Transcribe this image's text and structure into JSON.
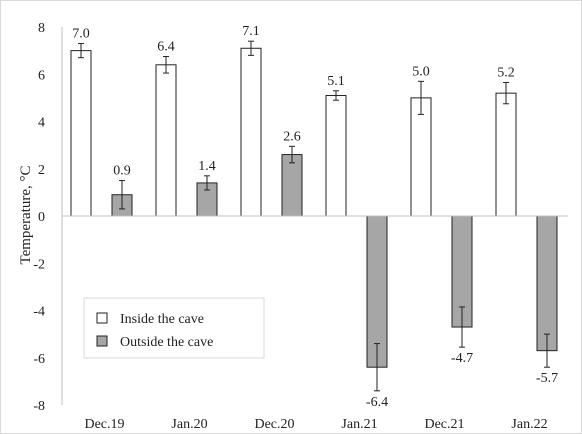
{
  "chart_data": {
    "type": "bar",
    "title": "",
    "xlabel": "",
    "ylabel": "Temperature, °C",
    "ylim": [
      -8,
      8
    ],
    "yticks": [
      8,
      6,
      4,
      2,
      0,
      -2,
      -4,
      -6,
      -8
    ],
    "grid": false,
    "legend_position": "lower-left",
    "categories": [
      "Dec.19",
      "Jan.20",
      "Dec.20",
      "Jan.21",
      "Dec.21",
      "Jan.22"
    ],
    "series": [
      {
        "name": "Inside the cave",
        "fill": "#ffffff",
        "stroke": "#222222",
        "values": [
          7.0,
          6.4,
          7.1,
          5.1,
          5.0,
          5.2
        ],
        "labels": [
          "7.0",
          "6.4",
          "7.1",
          "5.1",
          "5.0",
          "5.2"
        ],
        "error": [
          0.3,
          0.35,
          0.3,
          0.2,
          0.7,
          0.45
        ]
      },
      {
        "name": "Outside the cave",
        "fill": "#a6a6a6",
        "stroke": "#222222",
        "values": [
          0.9,
          1.4,
          2.6,
          -6.4,
          -4.7,
          -5.7
        ],
        "labels": [
          "0.9",
          "1.4",
          "2.6",
          "-6.4",
          "-4.7",
          "-5.7"
        ],
        "error": [
          0.6,
          0.3,
          0.35,
          1.0,
          0.85,
          0.7
        ]
      }
    ]
  }
}
